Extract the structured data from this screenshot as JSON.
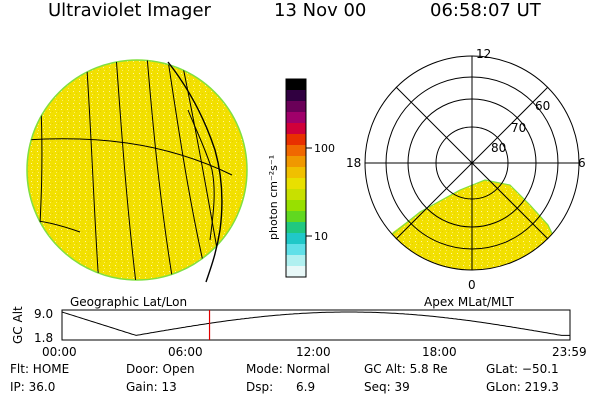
{
  "header": {
    "instrument": "Ultraviolet Imager",
    "date": "13 Nov 00",
    "time": "06:58:07 UT"
  },
  "left_panel": {
    "label": "Geographic Lat/Lon"
  },
  "right_panel": {
    "label": "Apex MLat/MLT",
    "mlt_labels": {
      "top": "12",
      "left": "18",
      "right": "6",
      "bottom": "0"
    },
    "lat_labels": [
      "60",
      "70",
      "80"
    ]
  },
  "colorbar": {
    "unit_label": "photon cm⁻²s⁻¹",
    "ticks": [
      "100",
      "10"
    ],
    "colors": [
      "#000000",
      "#300040",
      "#6a0058",
      "#a0006a",
      "#d0003a",
      "#e83000",
      "#f06800",
      "#f09800",
      "#f0c000",
      "#e8e000",
      "#c8e000",
      "#98e000",
      "#60d820",
      "#20c880",
      "#20c8c8",
      "#60e0e8",
      "#b0f0f0",
      "#e8f8f8"
    ]
  },
  "altitude_plot": {
    "ylabel": "GC Alt",
    "yticks": [
      "9.0",
      "1.8"
    ],
    "xticks": [
      "00:00",
      "06:00",
      "12:00",
      "18:00",
      "23:59"
    ],
    "current_time_hours": 6.97
  },
  "status": {
    "flt": "Flt: HOME",
    "ip": "IP: 36.0",
    "door": "Door: Open",
    "gain": "Gain: 13",
    "mode": "Mode: Normal",
    "dsp_label": "Dsp:",
    "dsp_value": "6.9",
    "gc_alt": "GC Alt: 5.8 Re",
    "seq": "Seq: 39",
    "glat": "GLat: −50.1",
    "glon": "GLon: 219.3"
  },
  "colors": {
    "image_fill": "#f2e000",
    "image_edge": "#80e040",
    "time_marker": "#e00000"
  }
}
